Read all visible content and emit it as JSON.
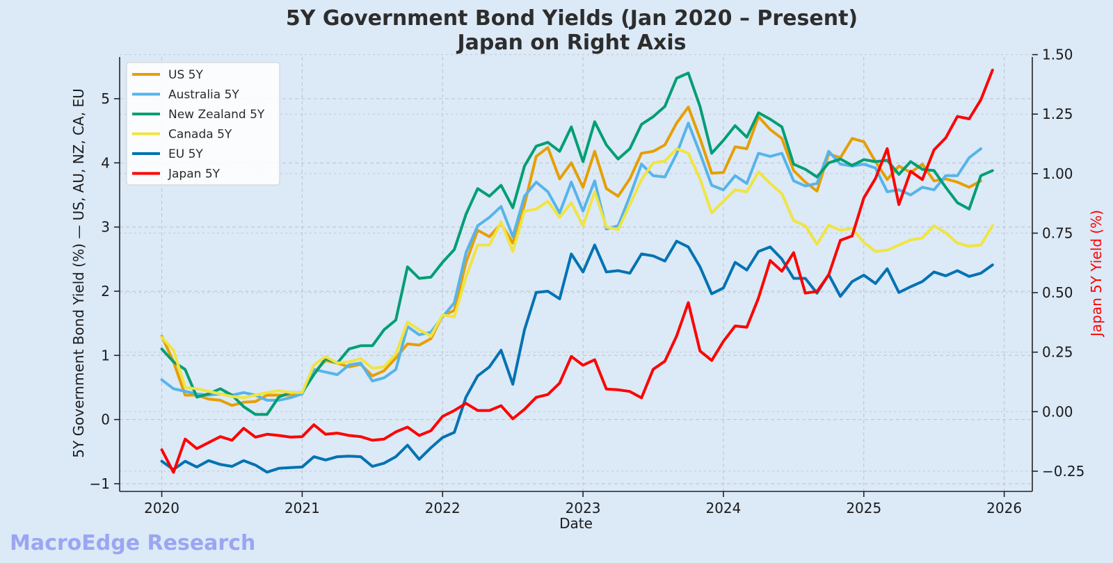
{
  "watermark": "MacroEdge Research",
  "chart_data": {
    "type": "line",
    "title_line1": "5Y Government Bond Yields (Jan 2020 – Present)",
    "title_line2": "Japan on Right Axis",
    "xlabel": "Date",
    "ylabel_left": "5Y Government Bond Yield (%) — US, AU, NZ, CA, EU",
    "ylabel_right": "Japan 5Y Yield (%)",
    "xlim": [
      2019.7,
      2026.2
    ],
    "ylim_left": [
      -1.12,
      5.65
    ],
    "ylim_right": [
      -0.335,
      1.49
    ],
    "x_ticks": [
      "2020",
      "2021",
      "2022",
      "2023",
      "2024",
      "2025",
      "2026"
    ],
    "y_ticks_left": [
      "−1",
      "0",
      "1",
      "2",
      "3",
      "4",
      "5"
    ],
    "y_ticks_right": [
      "−0.25",
      "0.00",
      "0.25",
      "0.50",
      "0.75",
      "1.00",
      "1.25",
      "1.50"
    ],
    "grid": true,
    "legend_position": "top-left",
    "x_start": "2020-01",
    "series": [
      {
        "name": "US 5Y",
        "color": "#e69f00",
        "axis": "left",
        "values": [
          1.3,
          0.9,
          0.38,
          0.38,
          0.32,
          0.3,
          0.22,
          0.27,
          0.28,
          0.38,
          0.38,
          0.38,
          0.42,
          0.73,
          0.92,
          0.88,
          0.82,
          0.86,
          0.68,
          0.76,
          0.96,
          1.18,
          1.16,
          1.26,
          1.62,
          1.7,
          2.45,
          2.95,
          2.85,
          3.05,
          2.75,
          3.35,
          4.1,
          4.24,
          3.75,
          4.0,
          3.62,
          4.18,
          3.6,
          3.48,
          3.75,
          4.15,
          4.18,
          4.28,
          4.62,
          4.87,
          4.38,
          3.84,
          3.85,
          4.25,
          4.22,
          4.72,
          4.52,
          4.38,
          3.88,
          3.7,
          3.56,
          4.14,
          4.08,
          4.38,
          4.33,
          4.02,
          3.74,
          3.95,
          3.85,
          3.98,
          3.72,
          3.75,
          3.7,
          3.62,
          3.72
        ]
      },
      {
        "name": "Australia 5Y",
        "color": "#56b4e9",
        "axis": "left",
        "values": [
          0.62,
          0.48,
          0.44,
          0.4,
          0.38,
          0.4,
          0.38,
          0.42,
          0.38,
          0.3,
          0.3,
          0.34,
          0.4,
          0.78,
          0.74,
          0.7,
          0.85,
          0.88,
          0.6,
          0.65,
          0.78,
          1.45,
          1.32,
          1.36,
          1.6,
          1.82,
          2.6,
          3.02,
          3.15,
          3.32,
          2.85,
          3.48,
          3.7,
          3.55,
          3.22,
          3.7,
          3.25,
          3.72,
          2.97,
          3.02,
          3.48,
          3.98,
          3.8,
          3.78,
          4.14,
          4.62,
          4.15,
          3.65,
          3.58,
          3.8,
          3.68,
          4.15,
          4.1,
          4.15,
          3.72,
          3.64,
          3.68,
          4.18,
          3.98,
          3.95,
          3.98,
          3.92,
          3.55,
          3.58,
          3.5,
          3.62,
          3.58,
          3.8,
          3.8,
          4.08,
          4.22
        ]
      },
      {
        "name": "New Zealand 5Y",
        "color": "#009e73",
        "axis": "left",
        "values": [
          1.1,
          0.9,
          0.78,
          0.35,
          0.4,
          0.48,
          0.38,
          0.2,
          0.08,
          0.08,
          0.35,
          0.42,
          0.42,
          0.7,
          0.95,
          0.88,
          1.1,
          1.15,
          1.15,
          1.4,
          1.55,
          2.38,
          2.2,
          2.22,
          2.45,
          2.65,
          3.2,
          3.6,
          3.48,
          3.65,
          3.3,
          3.95,
          4.26,
          4.32,
          4.18,
          4.56,
          4.02,
          4.64,
          4.28,
          4.06,
          4.22,
          4.6,
          4.72,
          4.88,
          5.32,
          5.4,
          4.88,
          4.15,
          4.35,
          4.58,
          4.4,
          4.78,
          4.68,
          4.56,
          3.98,
          3.9,
          3.78,
          4.0,
          4.06,
          3.96,
          4.05,
          4.02,
          4.04,
          3.82,
          4.02,
          3.9,
          3.88,
          3.62,
          3.38,
          3.28,
          3.8,
          3.88
        ]
      },
      {
        "name": "Canada 5Y",
        "color": "#f0e442",
        "axis": "left",
        "values": [
          1.28,
          1.08,
          0.5,
          0.48,
          0.44,
          0.4,
          0.36,
          0.34,
          0.38,
          0.42,
          0.45,
          0.42,
          0.42,
          0.85,
          0.98,
          0.88,
          0.9,
          0.95,
          0.8,
          0.82,
          1.02,
          1.52,
          1.4,
          1.3,
          1.63,
          1.6,
          2.22,
          2.72,
          2.72,
          3.08,
          2.62,
          3.25,
          3.28,
          3.4,
          3.15,
          3.38,
          3.02,
          3.55,
          3.0,
          2.96,
          3.35,
          3.74,
          4.0,
          4.03,
          4.22,
          4.15,
          3.75,
          3.22,
          3.4,
          3.58,
          3.55,
          3.86,
          3.68,
          3.52,
          3.1,
          3.02,
          2.73,
          3.03,
          2.95,
          2.98,
          2.76,
          2.62,
          2.64,
          2.72,
          2.8,
          2.83,
          3.02,
          2.91,
          2.75,
          2.7,
          2.72,
          3.02
        ]
      },
      {
        "name": "EU 5Y",
        "color": "#0072b2",
        "axis": "left",
        "values": [
          -0.65,
          -0.78,
          -0.65,
          -0.74,
          -0.64,
          -0.7,
          -0.73,
          -0.64,
          -0.71,
          -0.82,
          -0.76,
          -0.75,
          -0.74,
          -0.58,
          -0.63,
          -0.58,
          -0.57,
          -0.58,
          -0.73,
          -0.68,
          -0.58,
          -0.4,
          -0.62,
          -0.44,
          -0.28,
          -0.2,
          0.35,
          0.68,
          0.82,
          1.08,
          0.55,
          1.4,
          1.98,
          2.0,
          1.88,
          2.58,
          2.3,
          2.72,
          2.3,
          2.32,
          2.28,
          2.58,
          2.55,
          2.47,
          2.78,
          2.69,
          2.38,
          1.96,
          2.05,
          2.45,
          2.33,
          2.62,
          2.69,
          2.5,
          2.2,
          2.2,
          1.97,
          2.26,
          1.92,
          2.15,
          2.25,
          2.12,
          2.35,
          1.98,
          2.07,
          2.15,
          2.3,
          2.24,
          2.32,
          2.23,
          2.28,
          2.41
        ]
      },
      {
        "name": "Japan 5Y",
        "color": "#ff0000",
        "axis": "right",
        "values": [
          -0.16,
          -0.255,
          -0.115,
          -0.155,
          -0.13,
          -0.105,
          -0.12,
          -0.07,
          -0.107,
          -0.095,
          -0.1,
          -0.107,
          -0.105,
          -0.055,
          -0.095,
          -0.09,
          -0.1,
          -0.105,
          -0.12,
          -0.115,
          -0.085,
          -0.065,
          -0.1,
          -0.08,
          -0.02,
          0.005,
          0.035,
          0.005,
          0.005,
          0.025,
          -0.03,
          0.01,
          0.06,
          0.072,
          0.12,
          0.232,
          0.195,
          0.218,
          0.095,
          0.092,
          0.085,
          0.058,
          0.178,
          0.212,
          0.318,
          0.458,
          0.255,
          0.215,
          0.295,
          0.36,
          0.355,
          0.478,
          0.635,
          0.59,
          0.668,
          0.498,
          0.505,
          0.575,
          0.72,
          0.738,
          0.898,
          0.98,
          1.105,
          0.87,
          1.01,
          0.975,
          1.1,
          1.15,
          1.24,
          1.23,
          1.31,
          1.435
        ]
      }
    ]
  }
}
